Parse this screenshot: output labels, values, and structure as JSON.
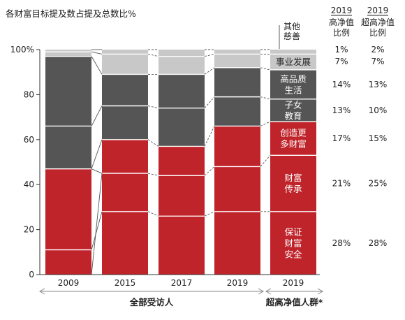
{
  "chart_data": {
    "type": "bar",
    "title": "各财富目标提及数占提及总数比%",
    "categories": [
      "2009",
      "2015",
      "2017",
      "2019",
      "2019"
    ],
    "ylim": [
      0,
      100
    ],
    "yticks": [
      "0",
      "20",
      "40",
      "60",
      "80",
      "100%"
    ],
    "group_labels": [
      {
        "label": "全部受访人",
        "columns": [
          0,
          3
        ]
      },
      {
        "label": "超高净值人群*",
        "columns": [
          4,
          4
        ]
      }
    ],
    "series": [
      {
        "key": "safety",
        "label_lines": [
          "保证",
          "财富",
          "安全"
        ],
        "color": "#c0242b",
        "values": [
          11,
          28,
          26,
          28,
          28
        ]
      },
      {
        "key": "inherit",
        "label_lines": [
          "财富",
          "传承"
        ],
        "color": "#c0242b",
        "values": [
          36,
          17,
          18,
          20,
          25
        ]
      },
      {
        "key": "create",
        "label_lines": [
          "创造更",
          "多财富"
        ],
        "color": "#c0242b",
        "values": [
          0,
          15,
          13,
          18,
          15
        ]
      },
      {
        "key": "children",
        "label_lines": [
          "子女",
          "教育"
        ],
        "color": "#555555",
        "values": [
          19,
          15,
          17,
          13,
          10
        ]
      },
      {
        "key": "quality",
        "label_lines": [
          "高品质",
          "生活"
        ],
        "color": "#555555",
        "values": [
          31,
          14,
          15,
          13,
          13
        ]
      },
      {
        "key": "career",
        "label_lines": [
          "事业发展"
        ],
        "color": "#c8c8c8",
        "values": [
          2,
          9,
          8,
          6,
          7
        ]
      },
      {
        "key": "other",
        "label_lines": [
          "其他",
          "慈善"
        ],
        "color": "#c8c8c8",
        "values": [
          1,
          2,
          3,
          2,
          2
        ]
      }
    ],
    "table": {
      "headers": [
        {
          "year": "2019",
          "lines": [
            "高净值",
            "比例"
          ]
        },
        {
          "year": "2019",
          "lines": [
            "超高净值",
            "比例"
          ]
        }
      ],
      "rows": [
        {
          "key": "other",
          "values": [
            "1%",
            "2%"
          ]
        },
        {
          "key": "career",
          "values": [
            "7%",
            "7%"
          ]
        },
        {
          "key": "quality",
          "values": [
            "14%",
            "13%"
          ]
        },
        {
          "key": "children",
          "values": [
            "13%",
            "10%"
          ]
        },
        {
          "key": "create",
          "values": [
            "17%",
            "15%"
          ]
        },
        {
          "key": "inherit",
          "values": [
            "21%",
            "25%"
          ]
        },
        {
          "key": "safety",
          "values": [
            "28%",
            "28%"
          ]
        }
      ]
    }
  }
}
